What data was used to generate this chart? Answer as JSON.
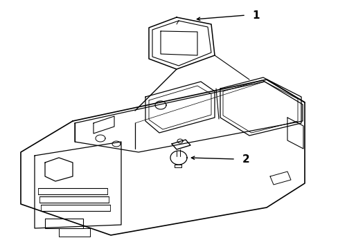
{
  "background_color": "#ffffff",
  "line_color": "#000000",
  "line_width": 1.0,
  "label_1_text": "1",
  "label_2_text": "2",
  "figsize": [
    4.89,
    3.6
  ],
  "dpi": 100
}
